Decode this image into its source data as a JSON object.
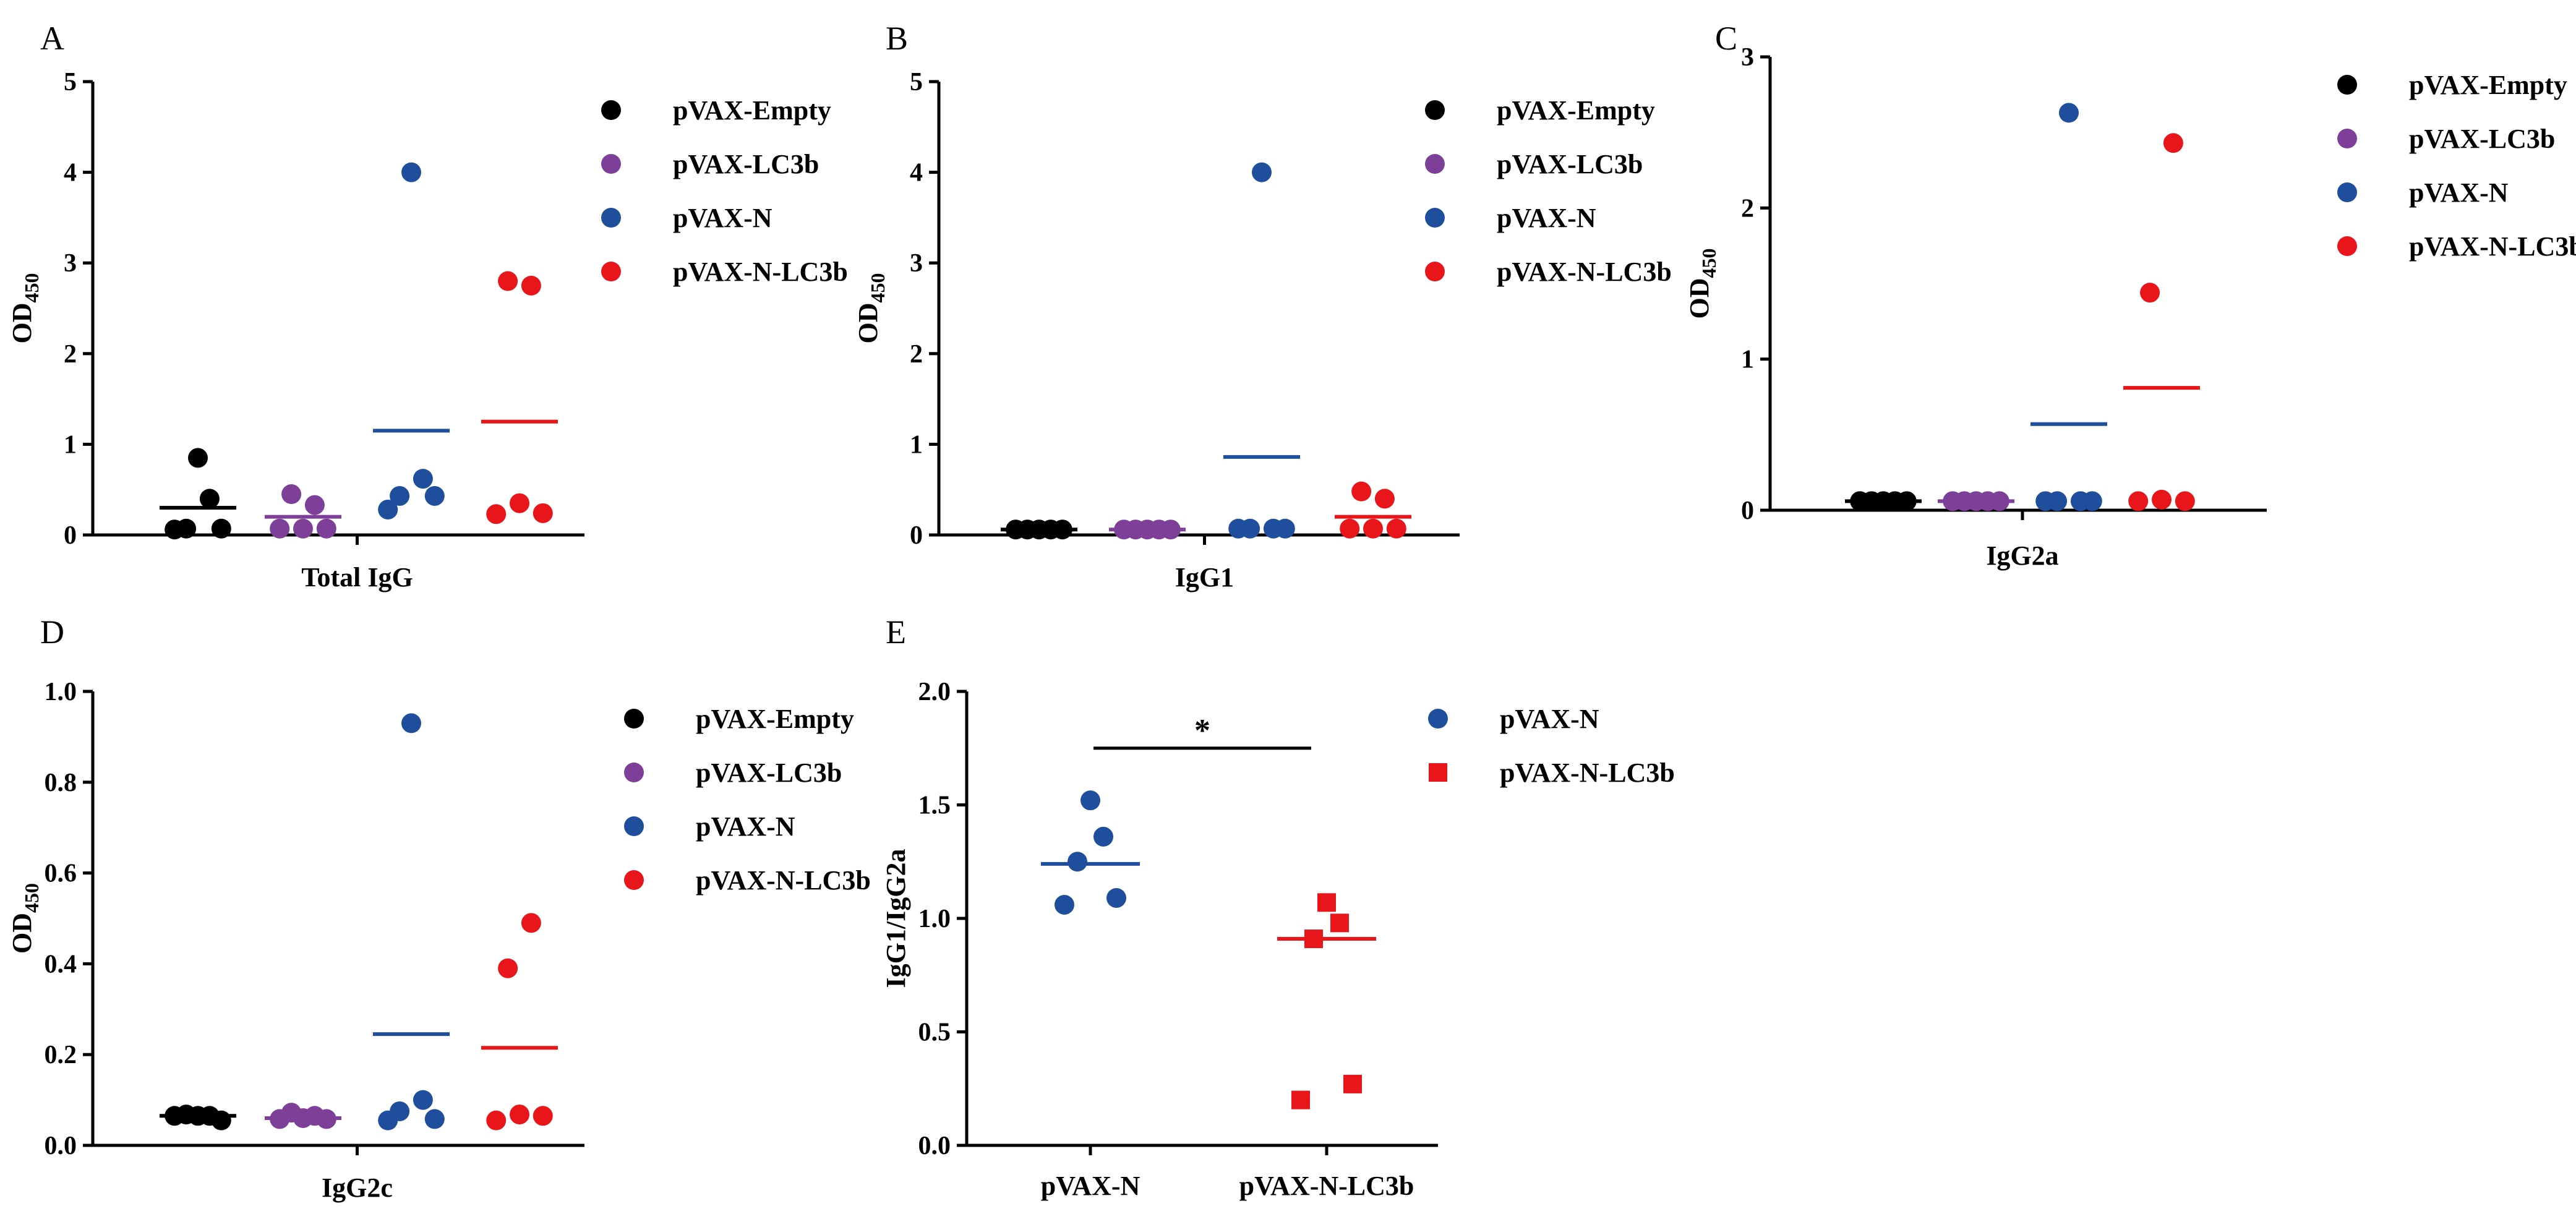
{
  "colors": {
    "pVAX-Empty": "#000000",
    "pVAX-LC3b": "#7d3f98",
    "pVAX-N": "#1f4e9c",
    "pVAX-N-LC3b": "#e8161b"
  },
  "chart_data": [
    {
      "panel": "A",
      "type": "scatter",
      "xlabel": "Total IgG",
      "ylabel": "OD",
      "ylabel_sub": "450",
      "ylim": [
        0,
        5
      ],
      "yticks": [
        0,
        1,
        2,
        3,
        4,
        5
      ],
      "series": [
        {
          "name": "pVAX-Empty",
          "marker": "circle",
          "mean": 0.3,
          "points": [
            0.06,
            0.07,
            0.85,
            0.4,
            0.07
          ]
        },
        {
          "name": "pVAX-LC3b",
          "marker": "circle",
          "mean": 0.2,
          "points": [
            0.07,
            0.45,
            0.07,
            0.33,
            0.07
          ]
        },
        {
          "name": "pVAX-N",
          "marker": "circle",
          "mean": 1.15,
          "points": [
            0.28,
            0.43,
            4.0,
            0.62,
            0.43
          ]
        },
        {
          "name": "pVAX-N-LC3b",
          "marker": "circle",
          "mean": 1.25,
          "points": [
            0.23,
            2.8,
            0.35,
            2.75,
            0.24
          ]
        }
      ],
      "legend": [
        "pVAX-Empty",
        "pVAX-LC3b",
        "pVAX-N",
        "pVAX-N-LC3b"
      ]
    },
    {
      "panel": "B",
      "type": "scatter",
      "xlabel": "IgG1",
      "ylabel": "OD",
      "ylabel_sub": "450",
      "ylim": [
        0,
        5
      ],
      "yticks": [
        0,
        1,
        2,
        3,
        4,
        5
      ],
      "series": [
        {
          "name": "pVAX-Empty",
          "marker": "circle",
          "mean": 0.06,
          "points": [
            0.06,
            0.06,
            0.06,
            0.06,
            0.06
          ]
        },
        {
          "name": "pVAX-LC3b",
          "marker": "circle",
          "mean": 0.06,
          "points": [
            0.06,
            0.06,
            0.06,
            0.06,
            0.06
          ]
        },
        {
          "name": "pVAX-N",
          "marker": "circle",
          "mean": 0.86,
          "points": [
            0.07,
            0.07,
            4.0,
            0.07,
            0.07
          ]
        },
        {
          "name": "pVAX-N-LC3b",
          "marker": "circle",
          "mean": 0.2,
          "points": [
            0.07,
            0.48,
            0.07,
            0.4,
            0.07
          ]
        }
      ],
      "legend": [
        "pVAX-Empty",
        "pVAX-LC3b",
        "pVAX-N",
        "pVAX-N-LC3b"
      ]
    },
    {
      "panel": "C",
      "type": "scatter",
      "xlabel": "IgG2a",
      "ylabel": "OD",
      "ylabel_sub": "450",
      "ylim": [
        0,
        3
      ],
      "yticks": [
        0,
        1,
        2,
        3
      ],
      "series": [
        {
          "name": "pVAX-Empty",
          "marker": "circle",
          "mean": 0.06,
          "points": [
            0.06,
            0.06,
            0.06,
            0.06,
            0.06
          ]
        },
        {
          "name": "pVAX-LC3b",
          "marker": "circle",
          "mean": 0.06,
          "points": [
            0.06,
            0.06,
            0.06,
            0.06,
            0.06
          ]
        },
        {
          "name": "pVAX-N",
          "marker": "circle",
          "mean": 0.57,
          "points": [
            0.06,
            0.06,
            2.63,
            0.06,
            0.06
          ]
        },
        {
          "name": "pVAX-N-LC3b",
          "marker": "circle",
          "mean": 0.81,
          "points": [
            0.06,
            1.44,
            0.07,
            2.43,
            0.06
          ]
        }
      ],
      "legend": [
        "pVAX-Empty",
        "pVAX-LC3b",
        "pVAX-N",
        "pVAX-N-LC3b"
      ]
    },
    {
      "panel": "D",
      "type": "scatter",
      "xlabel": "IgG2c",
      "ylabel": "OD",
      "ylabel_sub": "450",
      "ylim": [
        0,
        1.0
      ],
      "yticks": [
        "0.0",
        "0.2",
        "0.4",
        "0.6",
        "0.8",
        "1.0"
      ],
      "series": [
        {
          "name": "pVAX-Empty",
          "marker": "circle",
          "mean": 0.065,
          "points": [
            0.065,
            0.068,
            0.065,
            0.065,
            0.055
          ]
        },
        {
          "name": "pVAX-LC3b",
          "marker": "circle",
          "mean": 0.06,
          "points": [
            0.058,
            0.072,
            0.06,
            0.065,
            0.058
          ]
        },
        {
          "name": "pVAX-N",
          "marker": "circle",
          "mean": 0.245,
          "points": [
            0.055,
            0.075,
            0.93,
            0.1,
            0.058
          ]
        },
        {
          "name": "pVAX-N-LC3b",
          "marker": "circle",
          "mean": 0.215,
          "points": [
            0.055,
            0.39,
            0.068,
            0.49,
            0.065
          ]
        }
      ],
      "legend": [
        "pVAX-Empty",
        "pVAX-LC3b",
        "pVAX-N",
        "pVAX-N-LC3b"
      ]
    },
    {
      "panel": "E",
      "type": "scatter",
      "xlabel": "",
      "ylabel": "IgG1/IgG2a",
      "ylabel_sub": "",
      "ylim": [
        0,
        2.0
      ],
      "yticks": [
        "0.0",
        "0.5",
        "1.0",
        "1.5",
        "2.0"
      ],
      "categories": [
        "pVAX-N",
        "pVAX-N-LC3b"
      ],
      "significance": "*",
      "series": [
        {
          "name": "pVAX-N",
          "marker": "circle",
          "mean": 1.24,
          "points": [
            1.06,
            1.25,
            1.52,
            1.36,
            1.09
          ]
        },
        {
          "name": "pVAX-N-LC3b",
          "marker": "square",
          "mean": 0.91,
          "points": [
            0.2,
            0.91,
            1.07,
            0.98,
            0.27
          ]
        }
      ],
      "legend": [
        "pVAX-N",
        "pVAX-N-LC3b"
      ]
    }
  ]
}
